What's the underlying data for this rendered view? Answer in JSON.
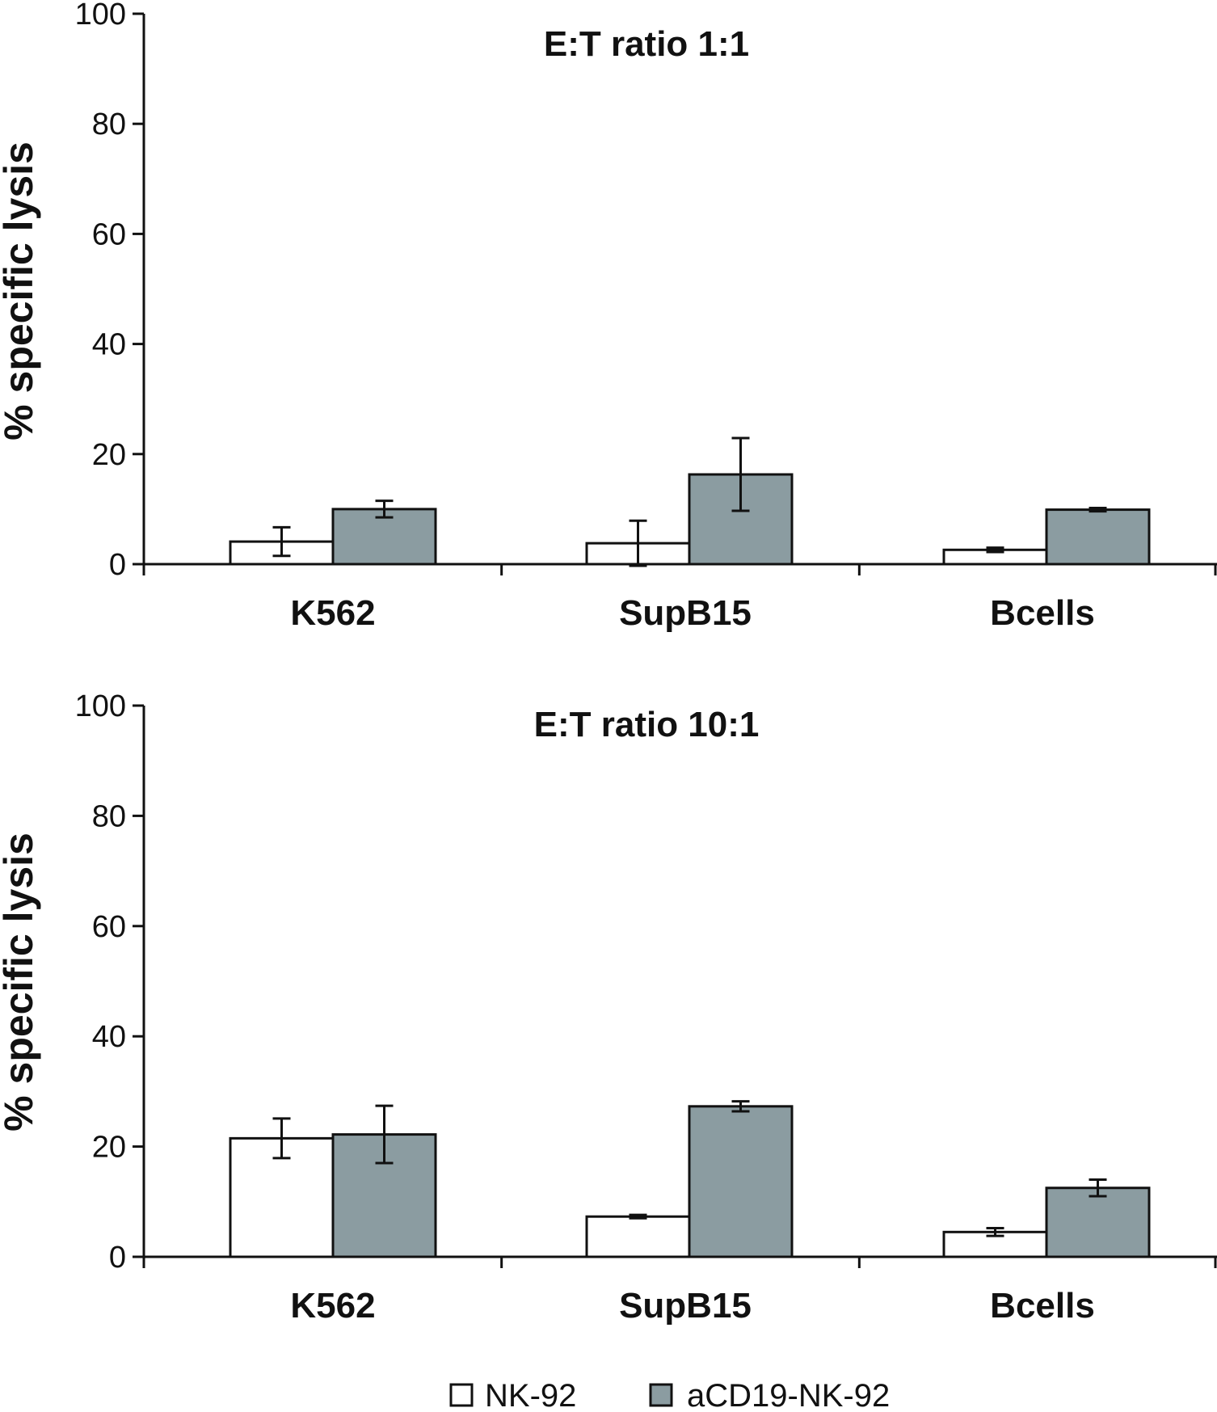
{
  "chart_data": [
    {
      "type": "bar",
      "title": "E:T ratio 1:1",
      "ylabel": "% specific lysis",
      "xlabel": "",
      "categories": [
        "K562",
        "SupB15",
        "Bcells"
      ],
      "ylim": [
        0,
        100
      ],
      "yticks": [
        "0",
        "20",
        "40",
        "60",
        "80",
        "100"
      ],
      "series": [
        {
          "name": "NK-92",
          "values": [
            4.1,
            3.8,
            2.6
          ],
          "errors": [
            2.6,
            4.1,
            0.4
          ]
        },
        {
          "name": "aCD19-NK-92",
          "values": [
            10.0,
            16.3,
            9.9
          ],
          "errors": [
            1.5,
            6.6,
            0.3
          ]
        }
      ]
    },
    {
      "type": "bar",
      "title": "E:T ratio 10:1",
      "ylabel": "% specific lysis",
      "xlabel": "",
      "categories": [
        "K562",
        "SupB15",
        "Bcells"
      ],
      "ylim": [
        0,
        100
      ],
      "yticks": [
        "0",
        "20",
        "40",
        "60",
        "80",
        "100"
      ],
      "series": [
        {
          "name": "NK-92",
          "values": [
            21.5,
            7.3,
            4.5
          ],
          "errors": [
            3.6,
            0.3,
            0.7
          ]
        },
        {
          "name": "aCD19-NK-92",
          "values": [
            22.2,
            27.3,
            12.5
          ],
          "errors": [
            5.2,
            0.9,
            1.5
          ]
        }
      ]
    }
  ],
  "legend": {
    "items": [
      {
        "label": "NK-92",
        "color": "#ffffff"
      },
      {
        "label": "aCD19-NK-92",
        "color": "#8b9ca1"
      }
    ]
  },
  "colors": {
    "series": [
      "#ffffff",
      "#8b9ca1"
    ],
    "stroke": "#111111"
  }
}
